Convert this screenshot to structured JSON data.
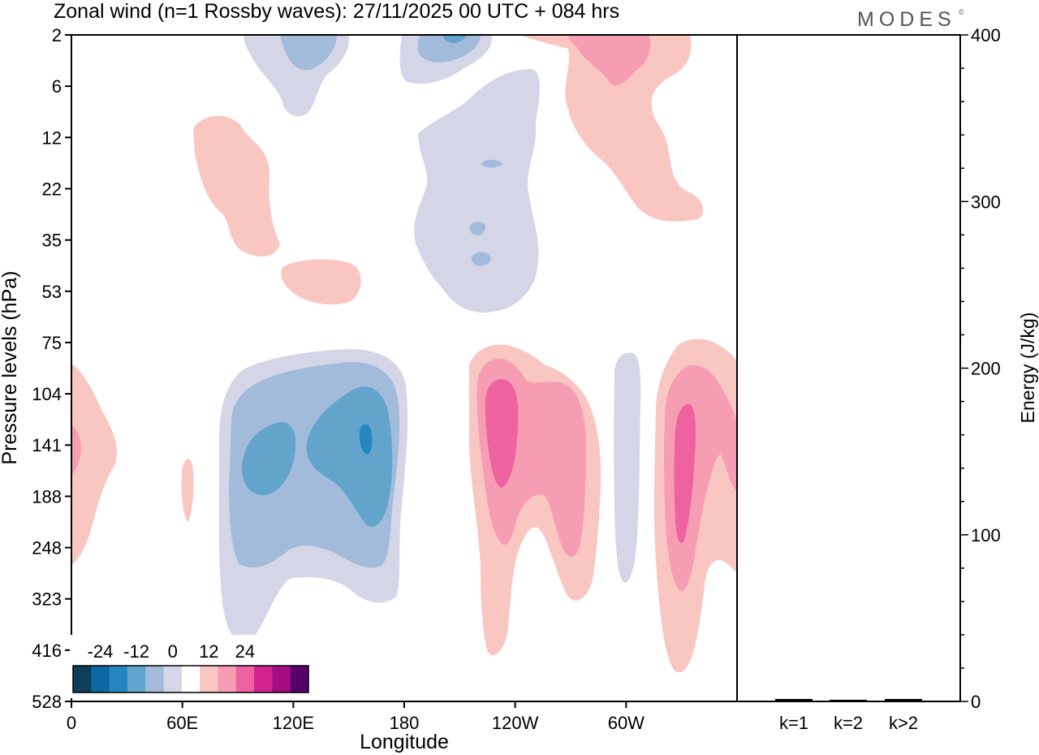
{
  "header": {
    "title": "Zonal wind (n=1 Rossby waves):  27/11/2025  00 UTC  + 084 hrs",
    "brand": "MODES",
    "brand_mark": "©"
  },
  "chart_data": [
    {
      "type": "heatmap",
      "title": "Zonal wind (n=1 Rossby waves)",
      "xlabel": "Longitude",
      "ylabel": "Pressure levels (hPa)",
      "x_ticks": [
        "0",
        "60E",
        "120E",
        "180",
        "120W",
        "60W"
      ],
      "x_tick_degrees": [
        0,
        60,
        120,
        180,
        240,
        300
      ],
      "x_range_degrees": [
        0,
        360
      ],
      "y_ticks": [
        "2",
        "6",
        "12",
        "22",
        "35",
        "53",
        "75",
        "104",
        "141",
        "188",
        "248",
        "323",
        "416",
        "528"
      ],
      "colorbar": {
        "labels": [
          "-24",
          "-12",
          "0",
          "12",
          "24"
        ],
        "label_positions": [
          1,
          3,
          5,
          7,
          9
        ],
        "colors": [
          "#0d3f5c",
          "#0d67a0",
          "#2587c0",
          "#63a4cd",
          "#a3bbdb",
          "#d4d6e8",
          "#ffffff",
          "#f9c6c2",
          "#f79db3",
          "#ef62a0",
          "#d2228f",
          "#a40e82",
          "#570069"
        ]
      },
      "contour_regions": [
        {
          "sign": "negative",
          "level": 1,
          "lon_range": [
            95,
            180
          ],
          "level_range": [
            "75",
            "416"
          ]
        },
        {
          "sign": "negative",
          "level": 3,
          "lon_range": [
            100,
            175
          ],
          "level_range": [
            "104",
            "323"
          ]
        },
        {
          "sign": "negative",
          "level": 4,
          "lon_range": [
            155,
            160
          ],
          "level_range": [
            "104",
            "141"
          ]
        },
        {
          "sign": "positive",
          "level": 3,
          "lon_range": [
            210,
            255
          ],
          "level_range": [
            "75",
            "416"
          ]
        },
        {
          "sign": "positive",
          "level": 3,
          "lon_range": [
            315,
            360
          ],
          "level_range": [
            "75",
            "416"
          ]
        },
        {
          "sign": "negative",
          "level": 1,
          "lon_range": [
            185,
            250
          ],
          "level_range": [
            "6",
            "53"
          ]
        },
        {
          "sign": "positive",
          "level": 2,
          "lon_range": [
            245,
            335
          ],
          "level_range": [
            "2",
            "22"
          ]
        }
      ]
    },
    {
      "type": "bar",
      "ylabel": "Energy (J/kg)",
      "categories": [
        "k=1",
        "k=2",
        "k>2"
      ],
      "values": [
        1,
        0.5,
        1
      ],
      "ylim": [
        0,
        400
      ],
      "y_ticks": [
        "0",
        "100",
        "200",
        "300",
        "400"
      ],
      "y_tick_values": [
        0,
        100,
        200,
        300,
        400
      ]
    }
  ]
}
